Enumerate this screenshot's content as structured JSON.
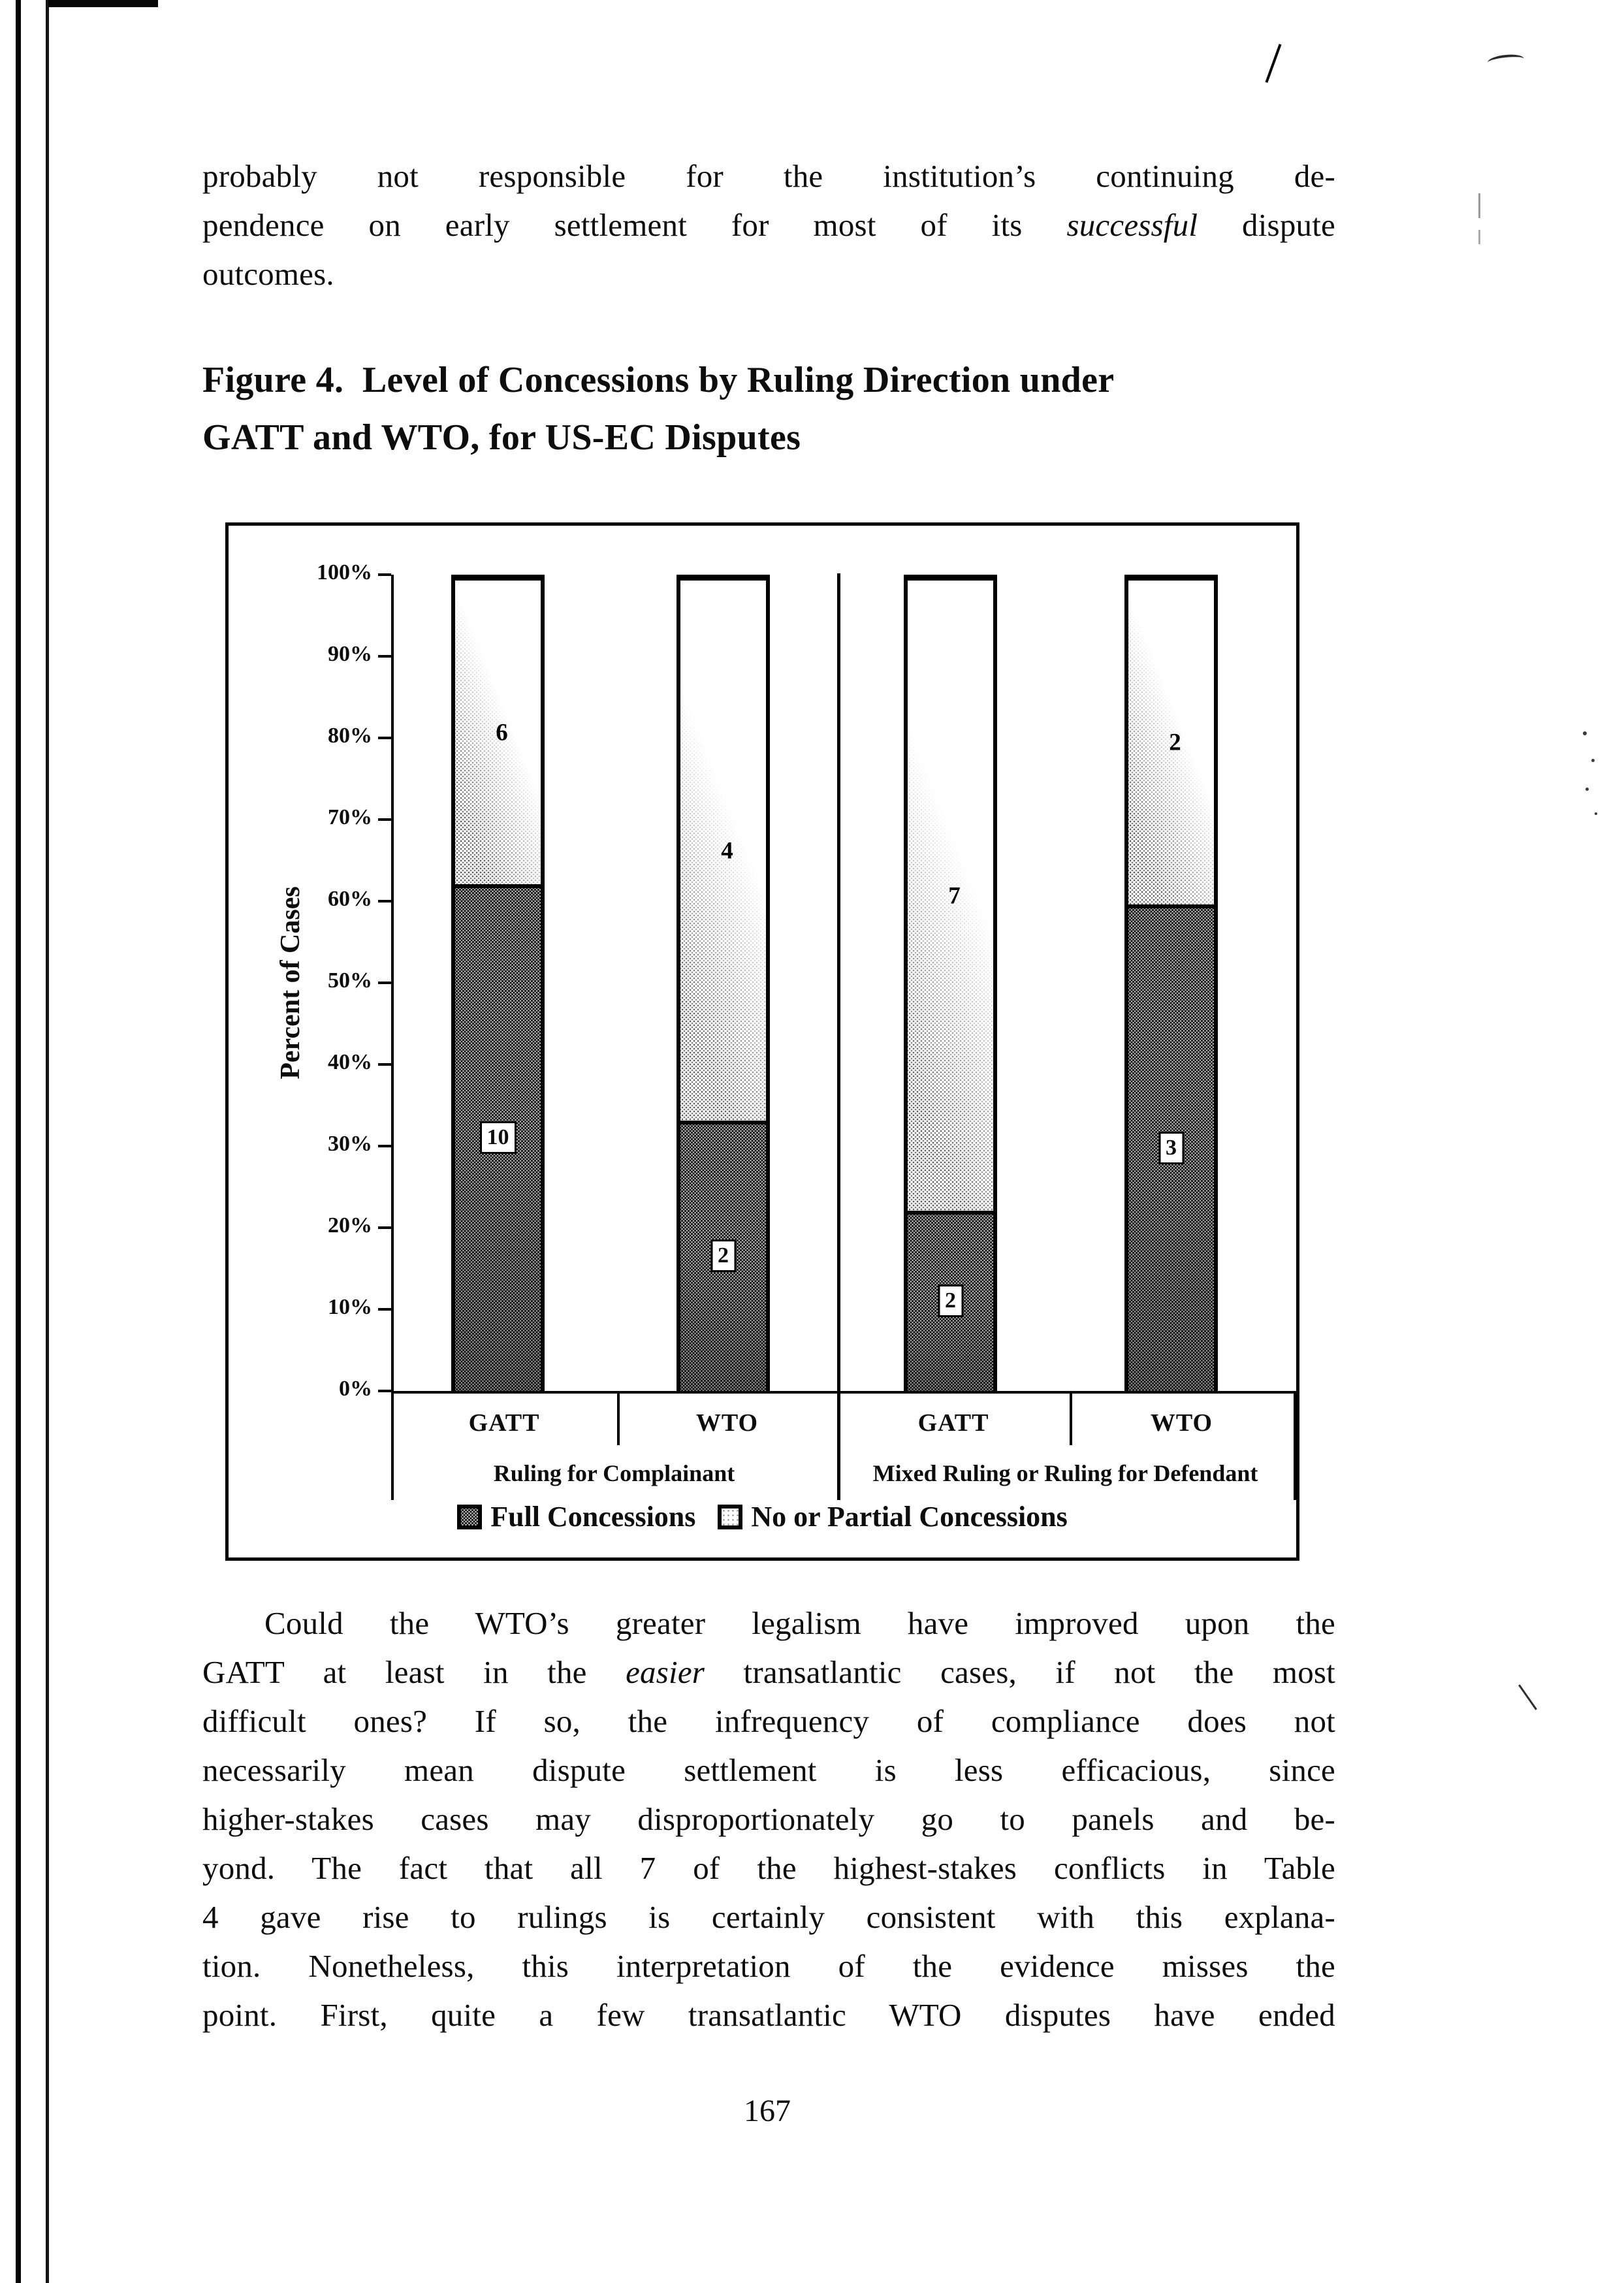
{
  "page_number": "167",
  "paragraph_top": {
    "lines": [
      {
        "justify": true,
        "parts": [
          {
            "t": "probably not responsible for the institution’s continuing de-"
          }
        ]
      },
      {
        "justify": true,
        "parts": [
          {
            "t": "pendence on early settlement for most of its "
          },
          {
            "t": "successful",
            "i": true
          },
          {
            "t": " dispute"
          }
        ]
      },
      {
        "justify": false,
        "parts": [
          {
            "t": "outcomes."
          }
        ]
      }
    ]
  },
  "figure": {
    "title_lines": [
      "Figure 4.  Level of Concessions by Ruling Direction under",
      "GATT and WTO, for US-EC Disputes"
    ]
  },
  "chart_data": {
    "type": "bar",
    "stacked": true,
    "units": "percent_of_cases",
    "title": "Level of Concessions by Ruling Direction under GATT and WTO, for US-EC Disputes",
    "ylabel": "Percent of Cases",
    "xlabel": "",
    "ylim": [
      0,
      100
    ],
    "grid": false,
    "y_ticks": [
      "100%",
      "90%",
      "80%",
      "70%",
      "60%",
      "50%",
      "40%",
      "30%",
      "20%",
      "10%",
      "0%"
    ],
    "categories": [
      "GATT",
      "WTO",
      "GATT",
      "WTO"
    ],
    "group_labels": [
      "Ruling for Complainant",
      "Mixed Ruling or Ruling for Defendant"
    ],
    "group_membership": [
      [
        0,
        1
      ],
      [
        2,
        3
      ]
    ],
    "series": [
      {
        "name": "Full Concessions",
        "position": "bottom",
        "values": [
          10,
          2,
          2,
          3
        ]
      },
      {
        "name": "No or Partial Concessions",
        "position": "top",
        "values": [
          6,
          4,
          7,
          2
        ]
      }
    ],
    "legend": [
      "Full Concessions",
      "No or Partial Concessions"
    ],
    "legend_position": "bottom"
  },
  "paragraph_bottom": {
    "indent_first": true,
    "lines": [
      {
        "justify": true,
        "parts": [
          {
            "t": "Could the WTO’s greater legalism have improved upon the"
          }
        ]
      },
      {
        "justify": true,
        "parts": [
          {
            "t": "GATT at least in the "
          },
          {
            "t": "easier",
            "i": true
          },
          {
            "t": " transatlantic cases, if not the most"
          }
        ]
      },
      {
        "justify": true,
        "parts": [
          {
            "t": "difficult ones? If so, the infrequency of compliance does not"
          }
        ]
      },
      {
        "justify": true,
        "parts": [
          {
            "t": "necessarily mean dispute settlement is less efficacious, since"
          }
        ]
      },
      {
        "justify": true,
        "parts": [
          {
            "t": "higher-stakes cases may disproportionately go to panels and be-"
          }
        ]
      },
      {
        "justify": true,
        "parts": [
          {
            "t": "yond. The fact that all 7 of the highest-stakes conflicts in Table"
          }
        ]
      },
      {
        "justify": true,
        "parts": [
          {
            "t": "4 gave rise to rulings is certainly consistent with this explana-"
          }
        ]
      },
      {
        "justify": true,
        "parts": [
          {
            "t": "tion. Nonetheless, this interpretation of the evidence misses the"
          }
        ]
      },
      {
        "justify": true,
        "parts": [
          {
            "t": "point. First, quite a few transatlantic WTO disputes have ended"
          }
        ]
      }
    ]
  }
}
